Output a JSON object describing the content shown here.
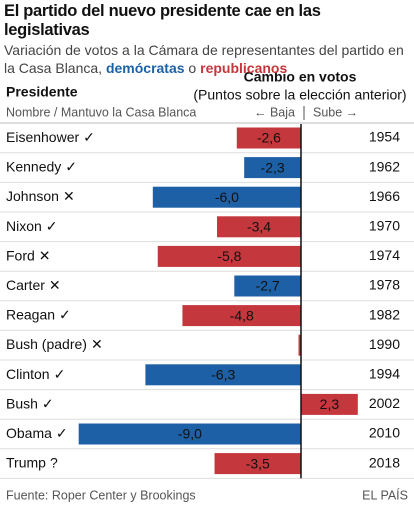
{
  "chart_data": {
    "type": "bar",
    "title": "El partido del nuevo presidente cae en las legislativas",
    "subtitle": "Variación de votos a la Cámara de representantes del partido en la Casa Blanca, ",
    "subtitle_dem": "demócratas",
    "subtitle_or": " o ",
    "subtitle_rep": "republicanos",
    "col_president": "Presidente",
    "col_president_sub": "Nombre / Mantuvo la Casa Blanca",
    "col_change": "Cambio en votos",
    "col_change_sub": "(Puntos sobre la elección anterior)",
    "down_label": "← Baja",
    "up_label": "Sube →",
    "categories": [
      "Eisenhower",
      "Kennedy",
      "Johnson",
      "Nixon",
      "Ford",
      "Carter",
      "Reagan",
      "Bush (padre)",
      "Clinton",
      "Bush",
      "Obama",
      "Trump"
    ],
    "marks": [
      "✓",
      "✓",
      "✕",
      "✓",
      "✕",
      "✕",
      "✓",
      "✕",
      "✓",
      "✓",
      "✓",
      "?"
    ],
    "values": [
      -2.6,
      -2.3,
      -6.0,
      -3.4,
      -5.8,
      -2.7,
      -4.8,
      -0.1,
      -6.3,
      2.3,
      -9.0,
      -3.5
    ],
    "value_labels": [
      "-2,6",
      "-2,3",
      "-6,0",
      "-3,4",
      "-5,8",
      "-2,7",
      "-4,8",
      null,
      "-6,3",
      "2,3",
      "-9,0",
      "-3,5"
    ],
    "years": [
      1954,
      1962,
      1966,
      1970,
      1974,
      1978,
      1982,
      1990,
      1994,
      2002,
      2010,
      2018
    ],
    "colors": [
      "#c4373c",
      "#1d60a5",
      "#1d60a5",
      "#c4373c",
      "#c4373c",
      "#1d60a5",
      "#c4373c",
      "#c4373c",
      "#1d60a5",
      "#c4373c",
      "#1d60a5",
      "#c4373c"
    ],
    "source": "Fuente: Roper Center y Brookings",
    "brand": "EL PAÍS"
  }
}
